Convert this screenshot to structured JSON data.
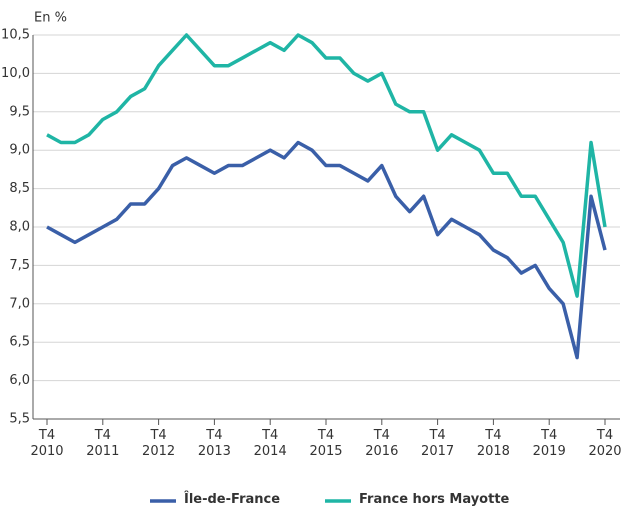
{
  "chart_data": {
    "type": "line",
    "y_label": "En %",
    "categories": [
      "T4\n2010",
      null,
      null,
      null,
      "T4\n2011",
      null,
      null,
      null,
      "T4\n2012",
      null,
      null,
      null,
      "T4\n2013",
      null,
      null,
      null,
      "T4\n2014",
      null,
      null,
      null,
      "T4\n2015",
      null,
      null,
      null,
      "T4\n2016",
      null,
      null,
      null,
      "T4\n2017",
      null,
      null,
      null,
      "T4\n2018",
      null,
      null,
      null,
      "T4\n2019",
      null,
      null,
      null,
      "T4\n2020"
    ],
    "series": [
      {
        "name": "Île-de-France",
        "color": "#3a5fa8",
        "values": [
          8.0,
          7.9,
          7.8,
          7.9,
          8.0,
          8.1,
          8.3,
          8.3,
          8.5,
          8.8,
          8.9,
          8.8,
          8.7,
          8.8,
          8.8,
          8.9,
          9.0,
          8.9,
          9.1,
          9.0,
          8.8,
          8.8,
          8.7,
          8.6,
          8.8,
          8.4,
          8.2,
          8.4,
          7.9,
          8.1,
          8.0,
          7.9,
          7.7,
          7.6,
          7.4,
          7.5,
          7.2,
          7.0,
          6.3,
          8.4,
          7.7
        ]
      },
      {
        "name": "France hors Mayotte",
        "color": "#1fb5a5",
        "values": [
          9.2,
          9.1,
          9.1,
          9.2,
          9.4,
          9.5,
          9.7,
          9.8,
          10.1,
          10.3,
          10.5,
          10.3,
          10.1,
          10.1,
          10.2,
          10.3,
          10.4,
          10.3,
          10.5,
          10.4,
          10.2,
          10.2,
          10.0,
          9.9,
          10.0,
          9.6,
          9.5,
          9.5,
          9.0,
          9.2,
          9.1,
          9.0,
          8.7,
          8.7,
          8.4,
          8.4,
          8.1,
          7.8,
          7.1,
          9.1,
          8.0
        ]
      }
    ],
    "ylim": [
      5.5,
      10.5
    ],
    "yticks": [
      {
        "value": 5.5,
        "label": "5,5"
      },
      {
        "value": 6,
        "label": "6,0"
      },
      {
        "value": 6.5,
        "label": "6,5"
      },
      {
        "value": 7,
        "label": "7,0"
      },
      {
        "value": 7.5,
        "label": "7,5"
      },
      {
        "value": 8,
        "label": "8,0"
      },
      {
        "value": 8.5,
        "label": "8,5"
      },
      {
        "value": 9,
        "label": "9,0"
      },
      {
        "value": 9.5,
        "label": "9,5"
      },
      {
        "value": 10,
        "label": "10,0"
      },
      {
        "value": 10.5,
        "label": "10,5"
      }
    ],
    "grid": true
  }
}
